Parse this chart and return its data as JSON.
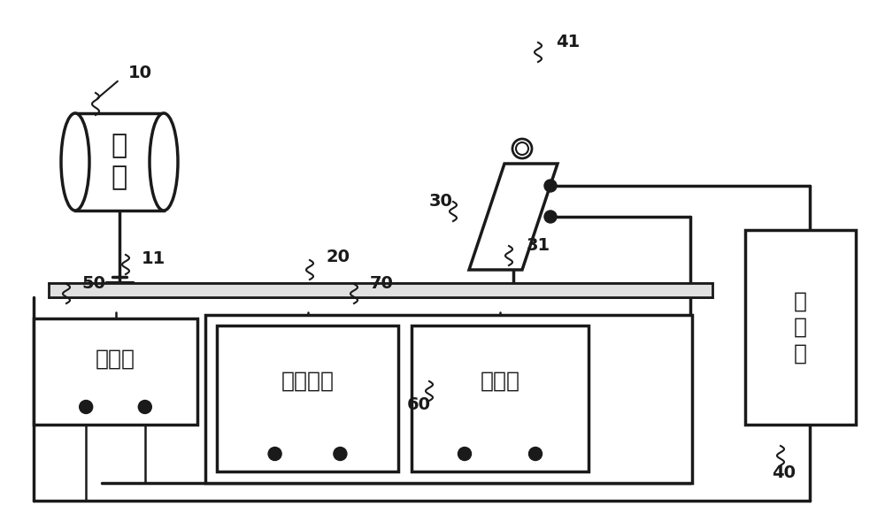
{
  "bg_color": "#ffffff",
  "line_color": "#1a1a1a",
  "lw": 2.5,
  "labels": {
    "10": "10",
    "11": "11",
    "20": "20",
    "30": "30",
    "31": "31",
    "40": "40",
    "41": "41",
    "50": "50",
    "60": "60",
    "70": "70"
  },
  "text_guangyuan": "光\n源",
  "text_dianyabiao": "电压表",
  "text_keyuanfuzai": "可变负载",
  "text_dianlubiao": "电流表",
  "text_zhaoduji": "照\n度\n计"
}
